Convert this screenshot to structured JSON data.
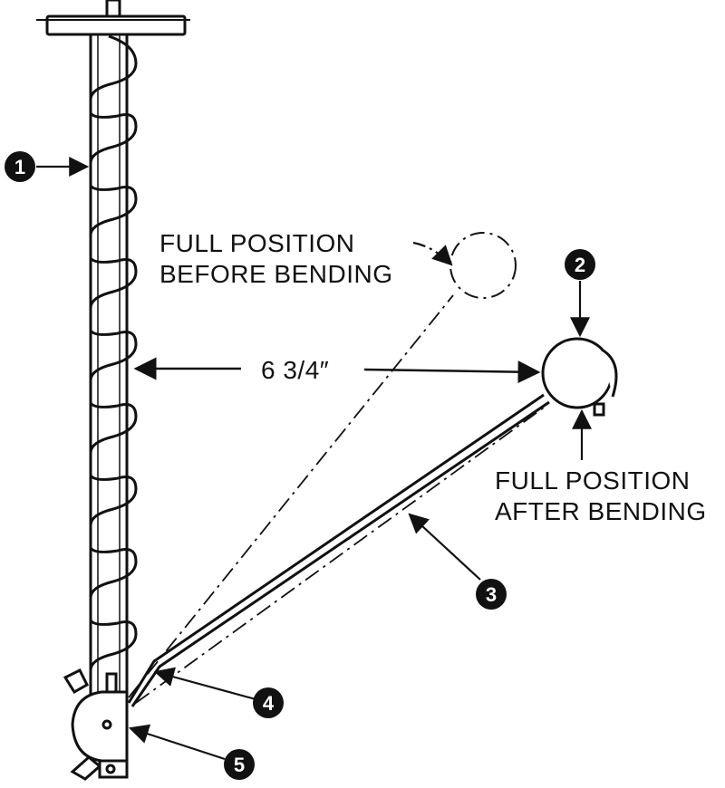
{
  "labels": {
    "before_line1": "FULL POSITION",
    "before_line2": "BEFORE BENDING",
    "after_line1": "FULL POSITION",
    "after_line2": "AFTER BENDING",
    "dimension": "6 3/4″"
  },
  "callouts": [
    "1",
    "2",
    "3",
    "4",
    "5"
  ],
  "colors": {
    "ink": "#111111",
    "paper": "#ffffff"
  }
}
